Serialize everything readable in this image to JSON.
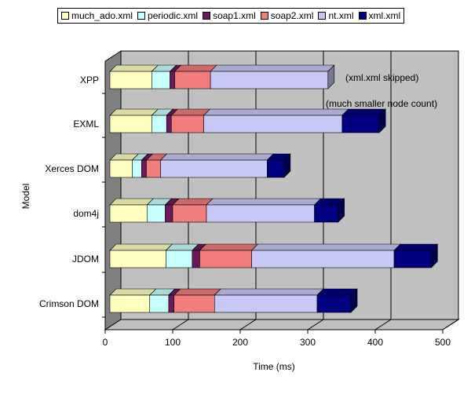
{
  "chart_data": {
    "type": "bar",
    "orientation": "horizontal",
    "stacked": true,
    "three_d": true,
    "categories": [
      "XPP",
      "EXML",
      "Xerces DOM",
      "dom4j",
      "JDOM",
      "Crimson DOM"
    ],
    "series": [
      {
        "name": "much_ado.xml",
        "color": "#FFFFC0",
        "values": [
          62,
          62,
          33,
          55,
          83,
          59
        ]
      },
      {
        "name": "periodic.xml",
        "color": "#C8FFFF",
        "values": [
          27,
          22,
          14,
          27,
          39,
          28
        ]
      },
      {
        "name": "soap1.xml",
        "color": "#6A1A5C",
        "values": [
          7,
          7,
          7,
          11,
          11,
          8
        ]
      },
      {
        "name": "soap2.xml",
        "color": "#F07C7C",
        "values": [
          53,
          48,
          21,
          50,
          77,
          60
        ]
      },
      {
        "name": "nt.xml",
        "color": "#C8C8F6",
        "values": [
          174,
          205,
          158,
          160,
          211,
          152
        ]
      },
      {
        "name": "xml.xml",
        "color": "#000080",
        "values": [
          0,
          55,
          25,
          35,
          55,
          50
        ]
      }
    ],
    "xlabel": "Time (ms)",
    "ylabel": "Model",
    "xlim": [
      0,
      500
    ],
    "xticks": [
      "0",
      "100",
      "200",
      "300",
      "400",
      "500"
    ],
    "grid": true,
    "legend_position": "top",
    "annotations": [
      "(xml.xml skipped)",
      "(much smaller node count)"
    ],
    "colors": {
      "wall": "#C0C0C0",
      "floor": "#C0C0C0",
      "side_wall": "#808080"
    }
  }
}
